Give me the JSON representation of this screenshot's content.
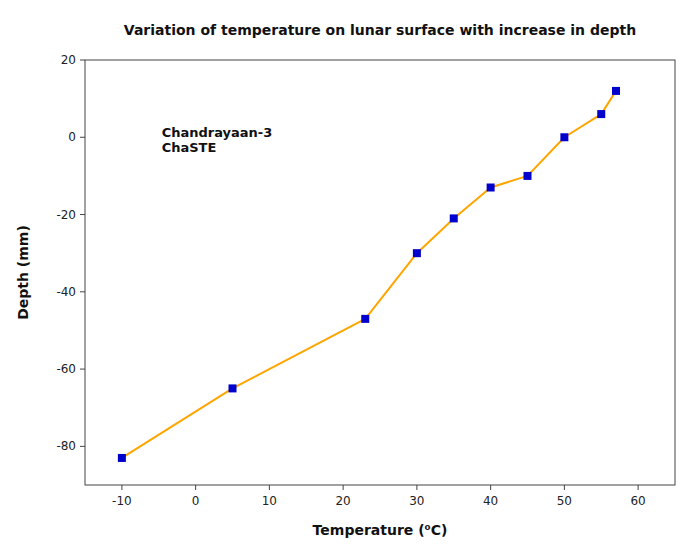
{
  "chart_data": {
    "type": "line",
    "title": "Variation of temperature on lunar surface with increase in depth",
    "x_label": "Temperature (⁰C)",
    "y_label": "Depth (mm)",
    "annotation": "Chandrayaan-3\nChaSTE",
    "x": [
      -10,
      5,
      23,
      30,
      35,
      40,
      45,
      50,
      55,
      57
    ],
    "series": [
      {
        "values": [
          -83,
          -65,
          -47,
          -30,
          -21,
          -13,
          -10,
          0,
          6,
          12
        ],
        "color": "#FFA500",
        "colors": [
          "#0000CC",
          "#0000CC",
          "#0000CC",
          "#0000CC",
          "#0000CC",
          "#0000CC",
          "#0000CC",
          "#0000CC",
          "#0000CC",
          "#0000CC"
        ],
        "marker": "square"
      }
    ],
    "xlim": [
      -15,
      65
    ],
    "ylim": [
      -90,
      20
    ],
    "xticks": [
      -10,
      0,
      10,
      20,
      30,
      40,
      50,
      60
    ],
    "yticks": [
      -80,
      -60,
      -40,
      -20,
      0,
      20
    ],
    "grid": false
  }
}
